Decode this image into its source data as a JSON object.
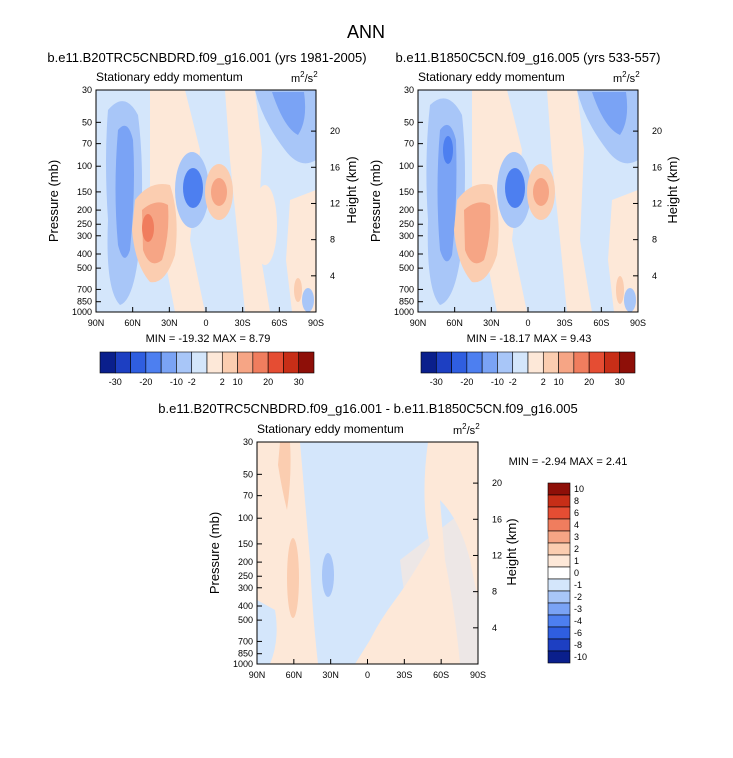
{
  "page": {
    "title": "ANN",
    "units_base": "m",
    "units_exp": "2",
    "units_sep": "/s",
    "units_exp2": "2"
  },
  "chart_data": [
    {
      "type": "heatmap",
      "title": "b.e11.B20TRC5CNBDRD.f09_g16.001 (yrs 1981-2005)",
      "subtitle": "Stationary eddy momentum",
      "ylabel": "Pressure (mb)",
      "y2label": "Height (km)",
      "x_ticks": [
        "90N",
        "60N",
        "30N",
        "0",
        "30S",
        "60S",
        "90S"
      ],
      "y_ticks": [
        "30",
        "50",
        "70",
        "100",
        "150",
        "200",
        "250",
        "300",
        "400",
        "500",
        "700",
        "850",
        "1000"
      ],
      "y2_ticks": [
        "20",
        "16",
        "12",
        "8",
        "4"
      ],
      "stats": {
        "min_label": "MIN =",
        "min": "-19.32",
        "max_label": "MAX =",
        "max": "8.79"
      },
      "colorbar": {
        "orientation": "horizontal",
        "tick_labels": [
          "-30",
          "-20",
          "-10",
          "-2",
          "2",
          "10",
          "20",
          "30"
        ]
      }
    },
    {
      "type": "heatmap",
      "title": "b.e11.B1850C5CN.f09_g16.005 (yrs 533-557)",
      "subtitle": "Stationary eddy momentum",
      "ylabel": "Pressure (mb)",
      "y2label": "Height (km)",
      "x_ticks": [
        "90N",
        "60N",
        "30N",
        "0",
        "30S",
        "60S",
        "90S"
      ],
      "y_ticks": [
        "30",
        "50",
        "70",
        "100",
        "150",
        "200",
        "250",
        "300",
        "400",
        "500",
        "700",
        "850",
        "1000"
      ],
      "y2_ticks": [
        "20",
        "16",
        "12",
        "8",
        "4"
      ],
      "stats": {
        "min_label": "MIN =",
        "min": "-18.17",
        "max_label": "MAX =",
        "max": "9.43"
      },
      "colorbar": {
        "orientation": "horizontal",
        "tick_labels": [
          "-30",
          "-20",
          "-10",
          "-2",
          "2",
          "10",
          "20",
          "30"
        ]
      }
    },
    {
      "type": "heatmap",
      "title": "b.e11.B20TRC5CNBDRD.f09_g16.001 - b.e11.B1850C5CN.f09_g16.005",
      "subtitle": "Stationary eddy momentum",
      "ylabel": "Pressure (mb)",
      "y2label": "Height (km)",
      "x_ticks": [
        "90N",
        "60N",
        "30N",
        "0",
        "30S",
        "60S",
        "90S"
      ],
      "y_ticks": [
        "30",
        "50",
        "70",
        "100",
        "150",
        "200",
        "250",
        "300",
        "400",
        "500",
        "700",
        "850",
        "1000"
      ],
      "y2_ticks": [
        "20",
        "16",
        "12",
        "8",
        "4"
      ],
      "stats": {
        "min_label": "MIN =",
        "min": "-2.94",
        "max_label": "MAX =",
        "max": "2.41"
      },
      "colorbar": {
        "orientation": "vertical",
        "tick_labels": [
          "10",
          "8",
          "6",
          "4",
          "3",
          "2",
          "1",
          "0",
          "-1",
          "-2",
          "-3",
          "-4",
          "-6",
          "-8",
          "-10"
        ]
      }
    }
  ],
  "colors": {
    "scale": [
      "#0a1f8c",
      "#1d3fc2",
      "#2f5ee0",
      "#4d7ff0",
      "#7aa3f5",
      "#a8c6f8",
      "#d4e6fb",
      "#fde8d8",
      "#fbcdb0",
      "#f6a585",
      "#f07d5e",
      "#e54d33",
      "#c72e17",
      "#8e0f08"
    ],
    "diff_scale": [
      "#8e0f08",
      "#c72e17",
      "#e54d33",
      "#f07d5e",
      "#f6a585",
      "#fbcdb0",
      "#fde8d8",
      "#ffffff",
      "#d4e6fb",
      "#a8c6f8",
      "#7aa3f5",
      "#4d7ff0",
      "#2f5ee0",
      "#1d3fc2",
      "#0a1f8c"
    ]
  }
}
